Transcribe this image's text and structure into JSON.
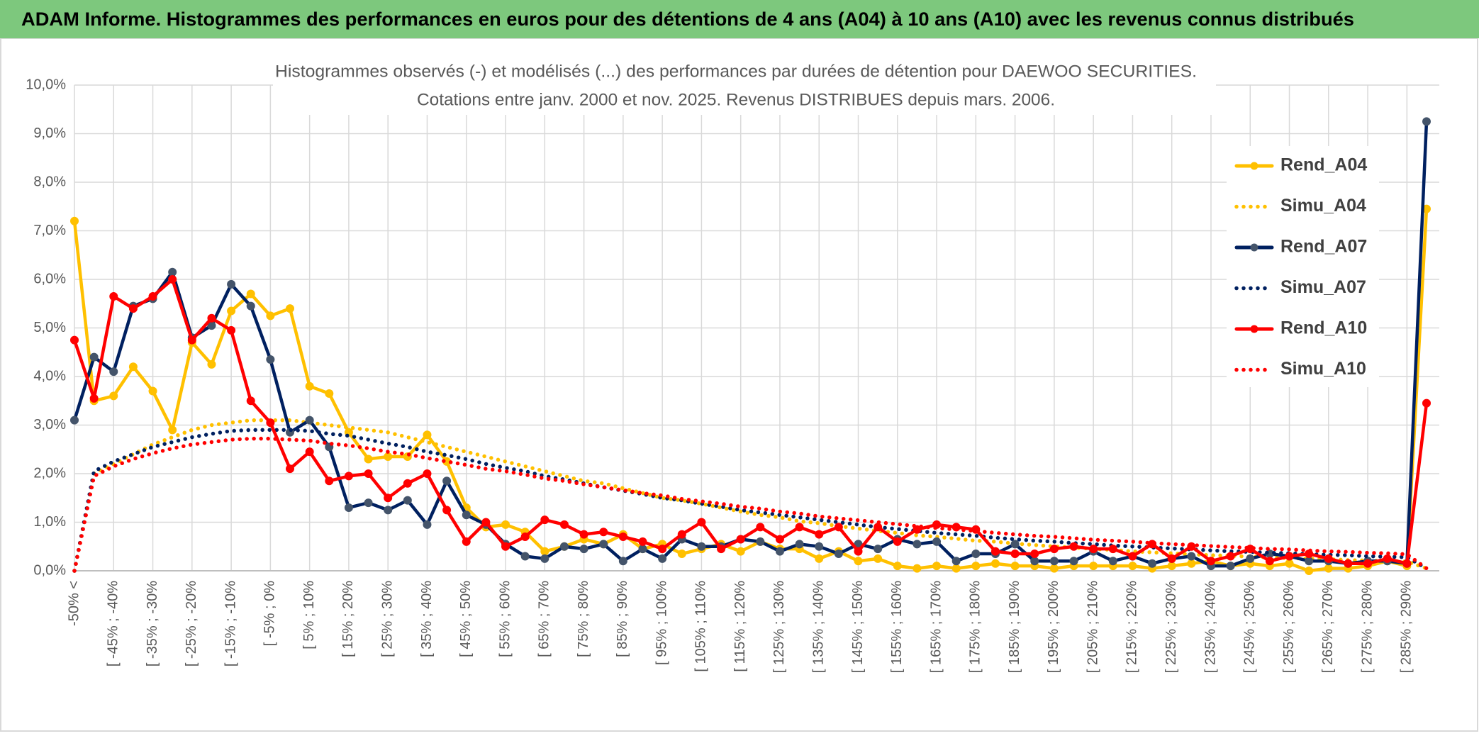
{
  "chart_data": {
    "type": "line",
    "title": "ADAM Informe. Histogrammes des performances en euros pour des détentions de 4 ans (A04) à 10 ans (A10) avec les revenus connus distribués",
    "subtitle": [
      "Histogrammes observés (-) et modélisés (...) des performances par durées de détention pour DAEWOO SECURITIES.",
      "Cotations entre janv. 2000 et nov. 2025. Revenus DISTRIBUES depuis mars. 2006."
    ],
    "categories": [
      "-50% <",
      null,
      "[ -45% ; -40%",
      null,
      "[ -35% ; -30%",
      null,
      "[ -25% ; -20%",
      null,
      "[ -15% ; -10%",
      null,
      "[ -5% ; 0%",
      null,
      "[ 5% ; 10%",
      null,
      "[ 15% ; 20%",
      null,
      "[ 25% ; 30%",
      null,
      "[ 35% ; 40%",
      null,
      "[ 45% ; 50%",
      null,
      "[ 55% ; 60%",
      null,
      "[ 65% ; 70%",
      null,
      "[ 75% ; 80%",
      null,
      "[ 85% ; 90%",
      null,
      "[ 95% ; 100%",
      null,
      "[ 105% ; 110%",
      null,
      "[ 115% ; 120%",
      null,
      "[ 125% ; 130%",
      null,
      "[ 135% ; 140%",
      null,
      "[ 145% ; 150%",
      null,
      "[ 155% ; 160%",
      null,
      "[ 165% ; 170%",
      null,
      "[ 175% ; 180%",
      null,
      "[ 185% ; 190%",
      null,
      "[ 195% ; 200%",
      null,
      "[ 205% ; 210%",
      null,
      "[ 215% ; 220%",
      null,
      "[ 225% ; 230%",
      null,
      "[ 235% ; 240%",
      null,
      "[ 245% ; 250%",
      null,
      "[ 255% ; 260%",
      null,
      "[ 265% ; 270%",
      null,
      "[ 275% ; 280%",
      null,
      "[ 285% ; 290%",
      null
    ],
    "ylim": [
      0,
      10
    ],
    "yticks": [
      {
        "value": 0,
        "label": "0,0%"
      },
      {
        "value": 1,
        "label": "1,0%"
      },
      {
        "value": 2,
        "label": "2,0%"
      },
      {
        "value": 3,
        "label": "3,0%"
      },
      {
        "value": 4,
        "label": "4,0%"
      },
      {
        "value": 5,
        "label": "5,0%"
      },
      {
        "value": 6,
        "label": "6,0%"
      },
      {
        "value": 7,
        "label": "7,0%"
      },
      {
        "value": 8,
        "label": "8,0%"
      },
      {
        "value": 9,
        "label": "9,0%"
      },
      {
        "value": 10,
        "label": "10,0%"
      }
    ],
    "grid": true,
    "legend": "right",
    "series": [
      {
        "name": "Rend_A04",
        "color": "#ffc000",
        "marker_color": "#ffc000",
        "line_style": "solid",
        "markers": true,
        "values": [
          7.2,
          3.5,
          3.6,
          4.2,
          3.7,
          2.9,
          4.7,
          4.25,
          5.35,
          5.7,
          5.25,
          5.4,
          3.8,
          3.65,
          2.85,
          2.3,
          2.35,
          2.35,
          2.8,
          2.25,
          1.3,
          0.9,
          0.95,
          0.8,
          0.4,
          0.5,
          0.65,
          0.55,
          0.75,
          0.45,
          0.55,
          0.35,
          0.45,
          0.55,
          0.4,
          0.6,
          0.45,
          0.45,
          0.25,
          0.4,
          0.2,
          0.25,
          0.1,
          0.05,
          0.1,
          0.05,
          0.1,
          0.15,
          0.1,
          0.1,
          0.05,
          0.1,
          0.1,
          0.1,
          0.1,
          0.05,
          0.1,
          0.15,
          0.2,
          0.1,
          0.15,
          0.1,
          0.15,
          0.0,
          0.05,
          0.05,
          0.1,
          0.2,
          0.1,
          7.45
        ]
      },
      {
        "name": "Simu_A04",
        "color": "#ffc000",
        "line_style": "dotted",
        "markers": false,
        "values": [
          0,
          2.0,
          2.2,
          2.4,
          2.6,
          2.75,
          2.9,
          3.0,
          3.05,
          3.1,
          3.1,
          3.1,
          3.05,
          3.0,
          2.95,
          2.9,
          2.85,
          2.75,
          2.65,
          2.55,
          2.45,
          2.35,
          2.25,
          2.15,
          2.05,
          1.95,
          1.85,
          1.8,
          1.7,
          1.6,
          1.5,
          1.45,
          1.38,
          1.3,
          1.22,
          1.15,
          1.1,
          1.02,
          0.98,
          0.92,
          0.87,
          0.82,
          0.78,
          0.73,
          0.7,
          0.66,
          0.62,
          0.6,
          0.56,
          0.53,
          0.5,
          0.48,
          0.45,
          0.43,
          0.4,
          0.38,
          0.36,
          0.34,
          0.32,
          0.31,
          0.29,
          0.28,
          0.26,
          0.25,
          0.24,
          0.22,
          0.21,
          0.2,
          0.19,
          0.05
        ]
      },
      {
        "name": "Rend_A07",
        "color": "#002060",
        "marker_color": "#44546a",
        "line_style": "solid",
        "markers": true,
        "values": [
          3.1,
          4.4,
          4.1,
          5.45,
          5.6,
          6.15,
          4.8,
          5.05,
          5.9,
          5.45,
          4.35,
          2.85,
          3.1,
          2.55,
          1.3,
          1.4,
          1.25,
          1.45,
          0.95,
          1.85,
          1.15,
          0.95,
          0.55,
          0.3,
          0.25,
          0.5,
          0.45,
          0.55,
          0.2,
          0.45,
          0.25,
          0.65,
          0.5,
          0.5,
          0.65,
          0.6,
          0.4,
          0.55,
          0.5,
          0.35,
          0.55,
          0.45,
          0.65,
          0.55,
          0.6,
          0.2,
          0.35,
          0.35,
          0.55,
          0.2,
          0.2,
          0.2,
          0.4,
          0.2,
          0.3,
          0.15,
          0.25,
          0.3,
          0.1,
          0.1,
          0.25,
          0.35,
          0.3,
          0.2,
          0.2,
          0.15,
          0.2,
          0.2,
          0.15,
          9.25
        ]
      },
      {
        "name": "Simu_A07",
        "color": "#002060",
        "line_style": "dotted",
        "markers": false,
        "values": [
          0,
          2.05,
          2.25,
          2.4,
          2.55,
          2.65,
          2.75,
          2.82,
          2.88,
          2.9,
          2.9,
          2.9,
          2.88,
          2.82,
          2.78,
          2.7,
          2.62,
          2.55,
          2.45,
          2.38,
          2.3,
          2.2,
          2.12,
          2.05,
          1.95,
          1.88,
          1.8,
          1.72,
          1.65,
          1.58,
          1.5,
          1.45,
          1.38,
          1.32,
          1.25,
          1.2,
          1.15,
          1.1,
          1.05,
          1.0,
          0.95,
          0.9,
          0.86,
          0.82,
          0.78,
          0.75,
          0.72,
          0.68,
          0.65,
          0.62,
          0.6,
          0.57,
          0.55,
          0.52,
          0.5,
          0.48,
          0.46,
          0.44,
          0.42,
          0.4,
          0.39,
          0.37,
          0.36,
          0.34,
          0.33,
          0.32,
          0.3,
          0.29,
          0.28,
          0.05
        ]
      },
      {
        "name": "Rend_A10",
        "color": "#ff0000",
        "marker_color": "#ff0000",
        "line_style": "solid",
        "markers": true,
        "values": [
          4.75,
          3.55,
          5.65,
          5.4,
          5.65,
          6.0,
          4.75,
          5.2,
          4.95,
          3.5,
          3.05,
          2.1,
          2.45,
          1.85,
          1.95,
          2.0,
          1.5,
          1.8,
          2.0,
          1.25,
          0.6,
          1.0,
          0.5,
          0.7,
          1.05,
          0.95,
          0.75,
          0.8,
          0.7,
          0.6,
          0.45,
          0.75,
          1.0,
          0.45,
          0.65,
          0.9,
          0.65,
          0.9,
          0.75,
          0.9,
          0.4,
          0.9,
          0.6,
          0.85,
          0.95,
          0.9,
          0.85,
          0.4,
          0.35,
          0.35,
          0.45,
          0.5,
          0.45,
          0.45,
          0.3,
          0.55,
          0.25,
          0.5,
          0.2,
          0.3,
          0.45,
          0.2,
          0.3,
          0.35,
          0.25,
          0.15,
          0.15,
          0.25,
          0.15,
          3.45
        ]
      },
      {
        "name": "Simu_A10",
        "color": "#ff0000",
        "line_style": "dotted",
        "markers": false,
        "values": [
          0,
          1.95,
          2.15,
          2.3,
          2.42,
          2.52,
          2.6,
          2.65,
          2.7,
          2.72,
          2.72,
          2.7,
          2.68,
          2.62,
          2.58,
          2.52,
          2.45,
          2.4,
          2.32,
          2.25,
          2.18,
          2.1,
          2.05,
          1.98,
          1.9,
          1.85,
          1.78,
          1.72,
          1.66,
          1.6,
          1.55,
          1.48,
          1.43,
          1.38,
          1.32,
          1.28,
          1.22,
          1.18,
          1.12,
          1.08,
          1.04,
          1.0,
          0.96,
          0.92,
          0.88,
          0.85,
          0.82,
          0.78,
          0.75,
          0.72,
          0.7,
          0.67,
          0.64,
          0.62,
          0.6,
          0.57,
          0.55,
          0.53,
          0.51,
          0.49,
          0.47,
          0.45,
          0.44,
          0.42,
          0.4,
          0.39,
          0.37,
          0.36,
          0.34,
          0.05
        ]
      }
    ]
  }
}
